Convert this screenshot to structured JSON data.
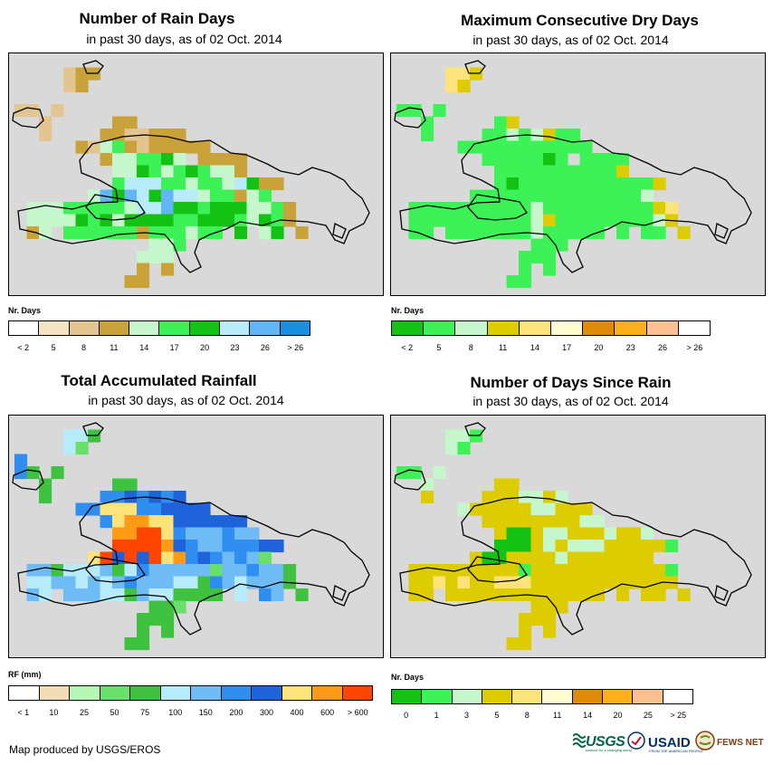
{
  "colors": {
    "map_background": "#d9d9d9",
    "coast": "#000000"
  },
  "panels": [
    {
      "id": "rain-days",
      "title": "Number of Rain Days",
      "subtitle": "in past 30 days, as of 02 Oct. 2014",
      "legend_title": "Nr. Days",
      "legend_colors": [
        "#ffffff",
        "#f5e3c4",
        "#e3c591",
        "#c9a33a",
        "#c6f7cc",
        "#3df256",
        "#14c214",
        "#b9ecfa",
        "#63b6f5",
        "#1a8fe0"
      ],
      "legend_labels": [
        "< 2",
        "5",
        "8",
        "11",
        "14",
        "17",
        "20",
        "23",
        "26",
        "> 26"
      ],
      "grid_default": 5,
      "grid_rows": [
        "..............................",
        "....233.......................",
        "....23........................",
        "..............................",
        "22.2..........................",
        "..2.....33....................",
        "..2....3322333................",
        ".....32453233333..............",
        ".......3445564.3333...........",
        "........44654565443...........",
        "........57775545547633........",
        "......486876877455345.........",
        ".4445555547786656664453.......",
        ".4444656466665566654653.......",
        ".34.5555553555455.6.46.3......",
        "...........445................",
        "..........444.................",
        "..........3.3.................",
        ".........33..................."
      ]
    },
    {
      "id": "max-dry-days",
      "title": "Maximum Consecutive Dry Days",
      "subtitle": "in past 30 days, as of 02 Oct. 2014",
      "legend_title": "Nr. Days",
      "legend_colors": [
        "#14c214",
        "#3df256",
        "#c6f7cc",
        "#dccc00",
        "#fde37a",
        "#fffcd0",
        "#df8a08",
        "#fdb01b",
        "#fcbf8f",
        "#ffffff"
      ],
      "legend_labels": [
        "< 2",
        "5",
        "8",
        "11",
        "14",
        "17",
        "20",
        "23",
        "26",
        "> 26"
      ],
      "grid_default": 1,
      "grid_rows": [
        "...........................",
        "....443.......................",
        "....43........................",
        "..............................",
        "11.1..........................",
        "..1.....13....................",
        "..1....11212311...............",
        ".....11111111111..............",
        ".......1111101.1111...........",
        "........11111111113...........",
        "........10111111111113........",
        "......111111111111112.........",
        ".1111111111211111111134.......",
        ".1111111111231111111123.......",
        ".11.1111111211111.1.11.3......",
        "...........111................",
        "..........111.................",
        "..........1.1.................",
        ".........11..................."
      ]
    },
    {
      "id": "total-rainfall",
      "title": "Total Accumulated Rainfall",
      "subtitle": "in past 30 days, as of 02 Oct. 2014",
      "legend_title": "RF (mm)",
      "legend_colors": [
        "#ffffff",
        "#f1dcb6",
        "#b7f7b5",
        "#68e06b",
        "#3fc23f",
        "#b6ecfa",
        "#6fbbf5",
        "#2f8ef0",
        "#1f63db",
        "#fde37a",
        "#ff9a17",
        "#ff4500"
      ],
      "legend_labels": [
        "< 1",
        "10",
        "25",
        "50",
        "75",
        "100",
        "150",
        "200",
        "300",
        "400",
        "600",
        "> 600"
      ],
      "grid_default": 6,
      "grid_rows": [
        "..............................",
        "....554.......................",
        "....53........................",
        "7.............................",
        "74.4..........................",
        "..4.....44....................",
        "..4....7787878................",
        ".....77999778888..............",
        ".......79aa99888888...........",
        "........aabb97666766..........",
        "........bbbba876677788........",
        "......9b8b8b9a7876763.........",
        ".6645556457666663667664.......",
        ".5566565676665547656664.......",
        ".65.6665546554444.5.76.4......",
        "...........443................",
        "..........444.................",
        "..........4.4.................",
        ".........44..................."
      ]
    },
    {
      "id": "days-since-rain",
      "title": "Number of Days Since Rain",
      "subtitle": "in past 30 days, as of 02 Oct. 2014",
      "legend_title": "Nr. Days",
      "legend_colors": [
        "#14c214",
        "#3df256",
        "#c6f7cc",
        "#dccc00",
        "#fde37a",
        "#fffcd0",
        "#df8a08",
        "#fdb01b",
        "#fcbf8f",
        "#ffffff"
      ],
      "legend_labels": [
        "0",
        "1",
        "3",
        "5",
        "8",
        "11",
        "14",
        "20",
        "25",
        "> 25"
      ],
      "grid_default": 3,
      "grid_rows": [
        "..............................",
        "....221.......................",
        "....21........................",
        "..............................",
        "11.2..........................",
        "..2.....33....................",
        "..3....3332232................",
        ".....23333322333..............",
        ".......3333333322.............",
        "........3003223332332.........",
        "........000323222333331.......",
        "......300333323333333.........",
        ".3333333331333333333331.......",
        ".3343433444333333333333.......",
        ".33.3333333333333.3.33.3......",
        "...........333................",
        "..........333.................",
        "..........3.3.................",
        ".........33..................."
      ]
    }
  ],
  "footer": {
    "credit": "Map produced by USGS/EROS",
    "logo_usgs": "USGS",
    "logo_usgs_tagline": "science for a changing world",
    "logo_usaid": "USAID",
    "logo_usaid_tagline": "FROM THE AMERICAN PEOPLE",
    "logo_fews": "FEWS NET"
  }
}
